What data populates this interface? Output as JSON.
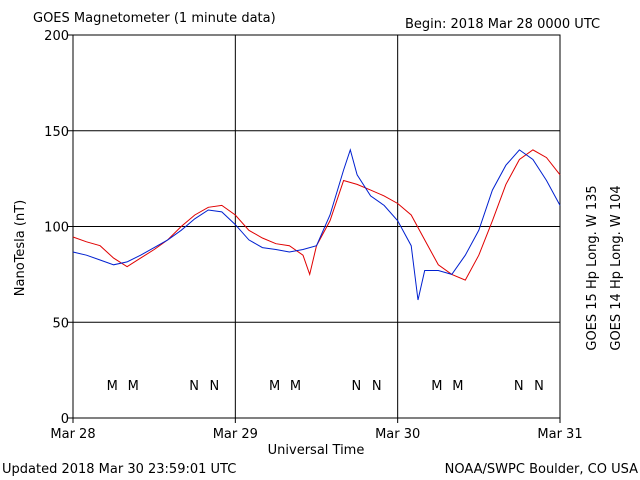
{
  "chart_data": {
    "type": "line",
    "title": "GOES Magnetometer (1 minute data)",
    "subtitle": "Begin:  2018 Mar 28 0000 UTC",
    "ylabel": "NanoTesla (nT)",
    "xlabel": "Universal Time",
    "footer_left": "Updated 2018 Mar 30 23:59:01 UTC",
    "footer_right": "NOAA/SWPC Boulder, CO USA",
    "xlim": [
      0,
      72
    ],
    "xticks": [
      {
        "value": 0,
        "label": "Mar 28"
      },
      {
        "value": 24,
        "label": "Mar 29"
      },
      {
        "value": 48,
        "label": "Mar 30"
      },
      {
        "value": 72,
        "label": "Mar 31"
      }
    ],
    "ylim": [
      0,
      200
    ],
    "yticks": [
      0,
      50,
      100,
      150,
      200
    ],
    "grid": true,
    "series": [
      {
        "name": "GOES 15 Hp  Long. W 135",
        "color": "#e00000",
        "x": [
          0,
          2,
          4,
          6,
          8,
          10,
          12,
          14,
          16,
          18,
          20,
          22,
          24,
          26,
          28,
          30,
          32,
          34,
          35,
          36,
          38,
          40,
          42,
          44,
          46,
          48,
          50,
          52,
          54,
          56,
          58,
          60,
          62,
          64,
          66,
          68,
          70,
          72
        ],
        "values": [
          94.5,
          92,
          90,
          83.5,
          79,
          83.5,
          88,
          93,
          100,
          106,
          110,
          111,
          106,
          98,
          94,
          91,
          90,
          85,
          75,
          90,
          103,
          124,
          122,
          119,
          116,
          112,
          106,
          93,
          80,
          75,
          72,
          85,
          103,
          122,
          135,
          140,
          136,
          127
        ],
        "markers": [
          {
            "label": "M",
            "x": 8.9
          },
          {
            "label": "N",
            "x": 20.9
          },
          {
            "label": "M",
            "x": 32.9
          },
          {
            "label": "N",
            "x": 44.9
          },
          {
            "label": "M",
            "x": 56.9
          },
          {
            "label": "N",
            "x": 68.9
          }
        ]
      },
      {
        "name": "GOES 14 Hp  Long. W 104",
        "color": "#0020d0",
        "x": [
          0,
          2,
          4,
          6,
          8,
          10,
          12,
          14,
          16,
          18,
          20,
          22,
          24,
          26,
          28,
          30,
          32,
          34,
          36,
          38,
          40,
          41,
          42,
          44,
          46,
          48,
          50,
          51,
          52,
          54,
          56,
          58,
          60,
          62,
          64,
          66,
          68,
          70,
          72
        ],
        "values": [
          86.7,
          85,
          82.5,
          80,
          81.5,
          85,
          89,
          93,
          98,
          104,
          108.6,
          107.6,
          101,
          93,
          89,
          88,
          86.7,
          88,
          90,
          106,
          129.5,
          140,
          127,
          116,
          111,
          103,
          90,
          61.6,
          77,
          77,
          75,
          85,
          98,
          119,
          132,
          140,
          135,
          124,
          111
        ],
        "markers": [
          {
            "label": "M",
            "x": 5.8
          },
          {
            "label": "N",
            "x": 17.9
          },
          {
            "label": "M",
            "x": 29.8
          },
          {
            "label": "N",
            "x": 41.9
          },
          {
            "label": "M",
            "x": 53.8
          },
          {
            "label": "N",
            "x": 65.9
          }
        ]
      }
    ]
  }
}
